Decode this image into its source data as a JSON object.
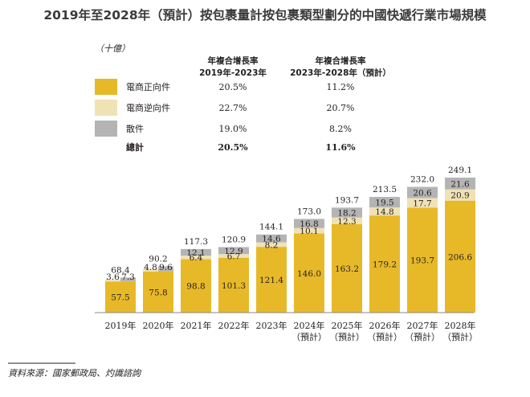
{
  "title": "2019年至2028年（預計）按包裹量計按包裹類型劃分的中國快遞行業市場規模",
  "unit": "（十億）",
  "cagr_header_1": [
    "年複合增長率",
    "2019年-2023年"
  ],
  "cagr_header_2": [
    "年複合增長率",
    "2023年-2028年（預計）"
  ],
  "legend": [
    {
      "name": "電商正向件",
      "color": "#e7b929",
      "cagr1": "20.5%",
      "cagr2": "11.2%"
    },
    {
      "name": "電商逆向件",
      "color": "#efe2b5",
      "cagr1": "22.7%",
      "cagr2": "20.7%"
    },
    {
      "name": "散件",
      "color": "#b5b4b4",
      "cagr1": "19.0%",
      "cagr2": "8.2%"
    }
  ],
  "total_row": {
    "label": "總計",
    "cagr1": "20.5%",
    "cagr2": "11.6%"
  },
  "source": "資料來源：國家郵政局、灼識諮詢",
  "chart_data": {
    "type": "bar",
    "stacked": true,
    "categories": [
      [
        "2019年"
      ],
      [
        "2020年"
      ],
      [
        "2021年"
      ],
      [
        "2022年"
      ],
      [
        "2023年"
      ],
      [
        "2024年",
        "（預計）"
      ],
      [
        "2025年",
        "（預計）"
      ],
      [
        "2026年",
        "（預計）"
      ],
      [
        "2027年",
        "（預計）"
      ],
      [
        "2028年",
        "（預計）"
      ]
    ],
    "series": [
      {
        "name": "電商正向件",
        "values": [
          57.5,
          75.8,
          98.8,
          101.3,
          121.4,
          146.0,
          163.2,
          179.2,
          193.7,
          206.6
        ]
      },
      {
        "name": "電商逆向件",
        "values": [
          3.6,
          4.8,
          6.4,
          6.7,
          8.2,
          10.1,
          12.3,
          14.8,
          17.7,
          20.9
        ]
      },
      {
        "name": "散件",
        "values": [
          7.3,
          9.6,
          12.1,
          12.9,
          14.6,
          16.8,
          18.2,
          19.5,
          20.6,
          21.6
        ]
      }
    ],
    "totals": [
      68.4,
      90.2,
      117.3,
      120.9,
      144.1,
      173.0,
      193.7,
      213.5,
      232.0,
      249.1
    ],
    "side_by_side_small": [
      true,
      true,
      false,
      false,
      false,
      false,
      false,
      false,
      false,
      false
    ],
    "ylim": [
      0,
      249.1
    ]
  }
}
